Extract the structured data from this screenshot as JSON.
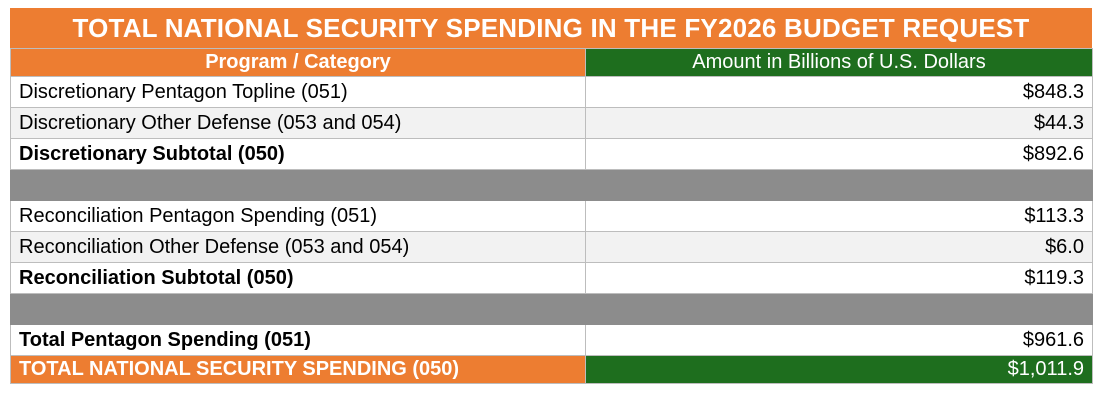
{
  "title": "TOTAL NATIONAL SECURITY SPENDING IN THE FY2026 BUDGET REQUEST",
  "headers": {
    "category": "Program / Category",
    "amount": "Amount in Billions of U.S. Dollars"
  },
  "rows": [
    {
      "label": "Discretionary Pentagon Topline (051)",
      "amount": "$848.3"
    },
    {
      "label": "Discretionary Other Defense (053 and 054)",
      "amount": "$44.3"
    },
    {
      "label": "Discretionary Subtotal (050)",
      "amount": "$892.6"
    },
    {
      "label": "",
      "amount": ""
    },
    {
      "label": "Reconciliation Pentagon Spending (051)",
      "amount": "$113.3"
    },
    {
      "label": "Reconciliation Other Defense (053 and 054)",
      "amount": "$6.0"
    },
    {
      "label": "Reconciliation Subtotal (050)",
      "amount": "$119.3"
    },
    {
      "label": "",
      "amount": ""
    },
    {
      "label": "Total Pentagon Spending (051)",
      "amount": "$961.6"
    },
    {
      "label": "TOTAL NATIONAL SECURITY SPENDING (050)",
      "amount": "$1,011.9"
    }
  ],
  "colors": {
    "orange": "#ed7d31",
    "green": "#1e6e1e",
    "gap_gray": "#8c8c8c",
    "shade": "#f2f2f2"
  }
}
